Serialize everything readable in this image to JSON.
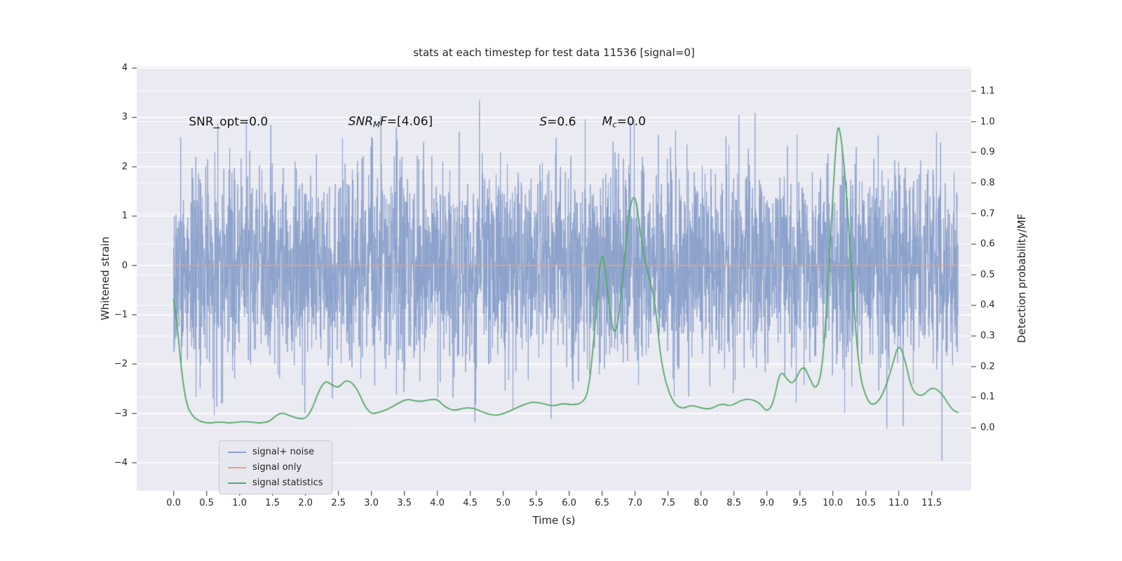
{
  "chart_data": {
    "type": "line",
    "title": "stats at each timestep for test data 11536 [signal=0]",
    "xlabel": "Time (s)",
    "ylabel_left": "Whitened strain",
    "ylabel_right": "Detection probability/MF",
    "xlim": [
      -0.56,
      12.1
    ],
    "ylim_left": [
      -4.57,
      4.03
    ],
    "ylim_right": [
      -0.206,
      1.18
    ],
    "grid": "horizontal-only",
    "background": {
      "figure": "#ffffff",
      "axes": "#eaeaf2",
      "grid": "#ffffff"
    },
    "xticks": {
      "values": [
        0,
        0.5,
        1,
        1.5,
        2,
        2.5,
        3,
        3.5,
        4,
        4.5,
        5,
        5.5,
        6,
        6.5,
        7,
        7.5,
        8,
        8.5,
        9,
        9.5,
        10,
        10.5,
        11,
        11.5
      ],
      "labels": [
        "0.0",
        "0.5",
        "1.0",
        "1.5",
        "2.0",
        "2.5",
        "3.0",
        "3.5",
        "4.0",
        "4.5",
        "5.0",
        "5.5",
        "6.0",
        "6.5",
        "7.0",
        "7.5",
        "8.0",
        "8.5",
        "9.0",
        "9.5",
        "10.0",
        "10.5",
        "11.0",
        "11.5"
      ]
    },
    "yticks_left": {
      "values": [
        -4,
        -3,
        -2,
        -1,
        0,
        1,
        2,
        3,
        4
      ],
      "labels": [
        "−4",
        "−3",
        "−2",
        "−1",
        "0",
        "1",
        "2",
        "3",
        "4"
      ]
    },
    "yticks_right": {
      "values": [
        0,
        0.1,
        0.2,
        0.3,
        0.4,
        0.5,
        0.6,
        0.7,
        0.8,
        0.9,
        1.0,
        1.1
      ],
      "labels": [
        "0.0",
        "0.1",
        "0.2",
        "0.3",
        "0.4",
        "0.5",
        "0.6",
        "0.7",
        "0.8",
        "0.9",
        "1.0",
        "1.1"
      ]
    },
    "series": [
      {
        "name": "signal+ noise",
        "axis": "left",
        "kind": "noise",
        "color": "#8ca2cc",
        "distribution": "gaussian",
        "mean": 0,
        "std": 1.0,
        "n": 4000,
        "x_start": 0,
        "x_end": 11.9
      },
      {
        "name": "signal only",
        "axis": "left",
        "kind": "constant",
        "color": "#e6a283",
        "value": 0,
        "x_start": 0,
        "x_end": 11.9
      },
      {
        "name": "signal statistics",
        "axis": "right",
        "kind": "points",
        "color": "#55a868",
        "x": [
          0,
          0.05,
          0.12,
          0.2,
          0.3,
          0.4,
          0.55,
          0.7,
          0.85,
          1.0,
          1.15,
          1.3,
          1.45,
          1.55,
          1.65,
          1.75,
          1.9,
          2.0,
          2.1,
          2.2,
          2.3,
          2.4,
          2.5,
          2.6,
          2.7,
          2.8,
          2.9,
          3.0,
          3.1,
          3.25,
          3.4,
          3.55,
          3.7,
          3.85,
          4.0,
          4.1,
          4.25,
          4.4,
          4.55,
          4.7,
          4.85,
          5.0,
          5.15,
          5.3,
          5.45,
          5.6,
          5.75,
          5.9,
          6.05,
          6.2,
          6.3,
          6.4,
          6.5,
          6.6,
          6.7,
          6.8,
          6.9,
          7.0,
          7.1,
          7.2,
          7.3,
          7.4,
          7.55,
          7.7,
          7.85,
          8.0,
          8.15,
          8.3,
          8.45,
          8.6,
          8.75,
          8.9,
          9.0,
          9.1,
          9.2,
          9.3,
          9.4,
          9.55,
          9.65,
          9.75,
          9.85,
          9.95,
          10.05,
          10.1,
          10.2,
          10.3,
          10.4,
          10.5,
          10.6,
          10.75,
          10.9,
          11.0,
          11.1,
          11.2,
          11.35,
          11.5,
          11.65,
          11.8,
          11.9
        ],
        "y": [
          0.42,
          0.35,
          0.18,
          0.07,
          0.035,
          0.02,
          0.015,
          0.02,
          0.015,
          0.02,
          0.02,
          0.015,
          0.02,
          0.04,
          0.05,
          0.04,
          0.03,
          0.03,
          0.06,
          0.12,
          0.155,
          0.14,
          0.13,
          0.155,
          0.15,
          0.12,
          0.07,
          0.045,
          0.05,
          0.06,
          0.08,
          0.095,
          0.085,
          0.09,
          0.095,
          0.07,
          0.055,
          0.065,
          0.065,
          0.05,
          0.04,
          0.045,
          0.06,
          0.075,
          0.085,
          0.08,
          0.07,
          0.08,
          0.075,
          0.08,
          0.12,
          0.35,
          0.62,
          0.4,
          0.28,
          0.45,
          0.7,
          0.78,
          0.6,
          0.5,
          0.42,
          0.2,
          0.09,
          0.06,
          0.075,
          0.065,
          0.06,
          0.08,
          0.07,
          0.09,
          0.095,
          0.08,
          0.05,
          0.08,
          0.19,
          0.16,
          0.14,
          0.21,
          0.16,
          0.12,
          0.2,
          0.55,
          0.95,
          1.0,
          0.8,
          0.45,
          0.18,
          0.1,
          0.07,
          0.1,
          0.2,
          0.28,
          0.22,
          0.12,
          0.1,
          0.135,
          0.115,
          0.06,
          0.05
        ]
      }
    ],
    "annotations": [
      {
        "x": 0.23,
        "y": 2.9,
        "parts": [
          {
            "t": "SNR_opt=0.0"
          }
        ]
      },
      {
        "x": 2.65,
        "y": 2.9,
        "parts": [
          {
            "t": "SNR",
            "i": 1
          },
          {
            "t": "M",
            "i": 1,
            "s": 1
          },
          {
            "t": "F",
            "i": 1
          },
          {
            "t": "=[4.06]"
          }
        ]
      },
      {
        "x": 5.55,
        "y": 2.9,
        "parts": [
          {
            "t": "S",
            "i": 1
          },
          {
            "t": "=0.6"
          }
        ]
      },
      {
        "x": 6.5,
        "y": 2.9,
        "parts": [
          {
            "t": "M",
            "i": 1
          },
          {
            "t": "c",
            "i": 1,
            "s": 1
          },
          {
            "t": "=0.0"
          }
        ]
      }
    ],
    "legend_position": "lower left"
  }
}
